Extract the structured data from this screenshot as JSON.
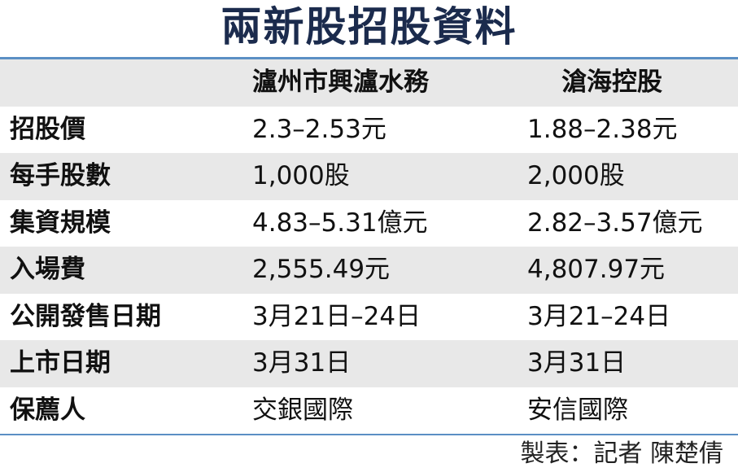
{
  "title": "兩新股招股資料",
  "table": {
    "columns": [
      "瀘州市興瀘水務",
      "滄海控股"
    ],
    "rows": [
      [
        "招股價",
        "2.3–2.53元",
        "1.88–2.38元"
      ],
      [
        "每手股數",
        "1,000股",
        "2,000股"
      ],
      [
        "集資規模",
        "4.83–5.31億元",
        "2.82–3.57億元"
      ],
      [
        "入場費",
        "2,555.49元",
        "4,807.97元"
      ],
      [
        "公開發售日期",
        "3月21日–24日",
        "3月21–24日"
      ],
      [
        "上市日期",
        "3月31日",
        "3月31日"
      ],
      [
        "保薦人",
        "交銀國際",
        "安信國際"
      ]
    ]
  },
  "footer": "製表：記者 陳楚倩"
}
